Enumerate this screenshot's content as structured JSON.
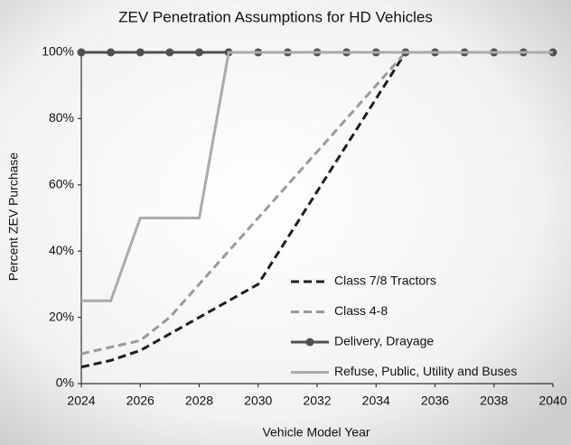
{
  "chart_data": {
    "type": "line",
    "title": "ZEV Penetration Assumptions for HD Vehicles",
    "x_label": "Vehicle Model Year",
    "y_label": "Percent ZEV Purchase",
    "x": [
      2024,
      2025,
      2026,
      2027,
      2028,
      2029,
      2030,
      2031,
      2032,
      2033,
      2034,
      2035,
      2036,
      2037,
      2038,
      2039,
      2040
    ],
    "series": [
      {
        "name": "Class 7/8 Tractors",
        "color": "#1e1e1e",
        "line_style": "dashed",
        "markers": false,
        "values": [
          5,
          7,
          10,
          15,
          20,
          25,
          30,
          44,
          58,
          72,
          86,
          100,
          100,
          100,
          100,
          100,
          100
        ]
      },
      {
        "name": "Class 4-8",
        "color": "#9a9a9a",
        "line_style": "dashed",
        "markers": false,
        "values": [
          9,
          11,
          13,
          20,
          30,
          40,
          50,
          60,
          70,
          80,
          90,
          100,
          100,
          100,
          100,
          100,
          100
        ]
      },
      {
        "name": "Delivery, Drayage",
        "color": "#505050",
        "line_style": "solid",
        "markers": true,
        "values": [
          100,
          100,
          100,
          100,
          100,
          100,
          100,
          100,
          100,
          100,
          100,
          100,
          100,
          100,
          100,
          100,
          100
        ]
      },
      {
        "name": "Refuse, Public, Utility and Buses",
        "color": "#ababab",
        "line_style": "solid",
        "markers": false,
        "values": [
          25,
          25,
          50,
          50,
          50,
          100,
          100,
          100,
          100,
          100,
          100,
          100,
          100,
          100,
          100,
          100,
          100
        ]
      }
    ],
    "xlim": [
      2024,
      2040
    ],
    "xticks": [
      2024,
      2026,
      2028,
      2030,
      2032,
      2034,
      2036,
      2038,
      2040
    ],
    "ylim": [
      0,
      100
    ],
    "yticks": [
      {
        "value": 0,
        "label": "0%"
      },
      {
        "value": 20,
        "label": "20%"
      },
      {
        "value": 40,
        "label": "40%"
      },
      {
        "value": 60,
        "label": "60%"
      },
      {
        "value": 80,
        "label": "80%"
      },
      {
        "value": 100,
        "label": "100%"
      }
    ],
    "grid": false,
    "legend": "lower right"
  }
}
